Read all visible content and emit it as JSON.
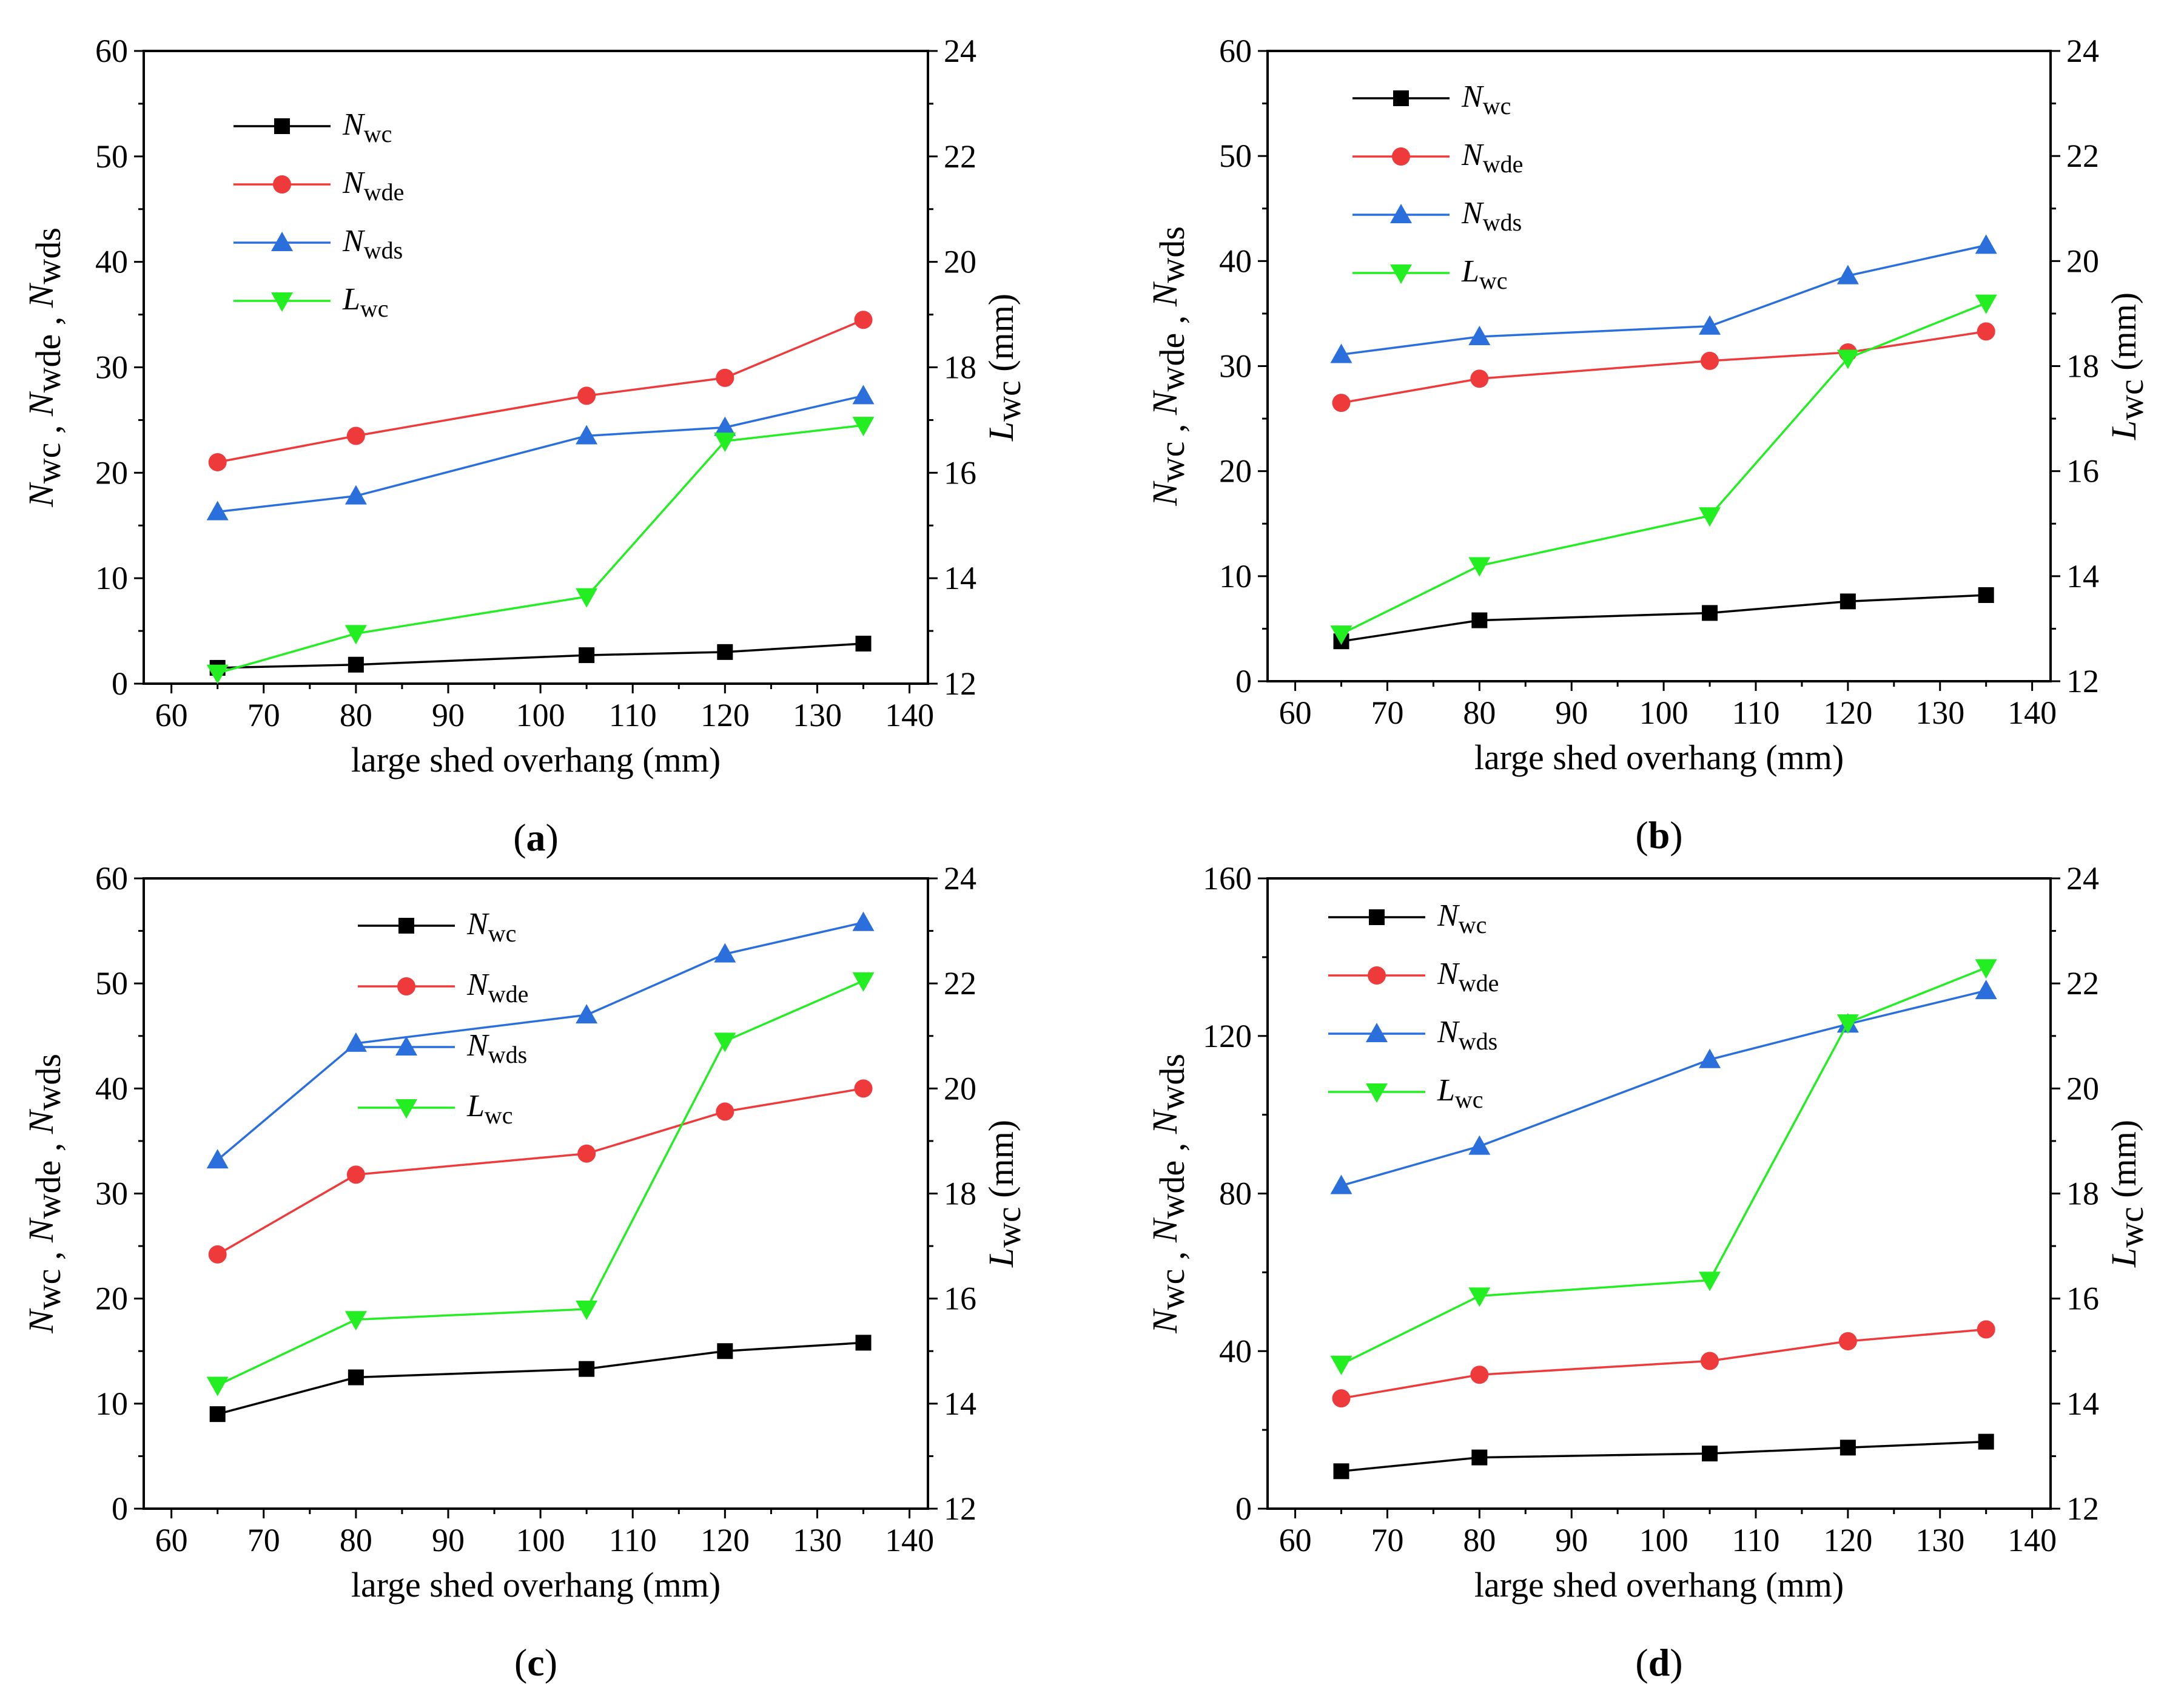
{
  "chart_data": [
    {
      "panel": "a",
      "type": "line",
      "caption": "(a)",
      "xlabel": "large shed overhang (mm)",
      "ylabel_left": "Nwc , Nwde , Nwds",
      "ylabel_right": "Lwc (mm)",
      "x": [
        65,
        80,
        105,
        120,
        135
      ],
      "xlim": [
        57,
        142
      ],
      "xticks": [
        60,
        70,
        80,
        90,
        100,
        110,
        120,
        130,
        140
      ],
      "ylim_left": [
        0,
        60
      ],
      "yticks_left": [
        0,
        10,
        20,
        30,
        40,
        50,
        60
      ],
      "ylim_right": [
        12,
        24
      ],
      "yticks_right": [
        12,
        14,
        16,
        18,
        20,
        22,
        24
      ],
      "legend_position": "top-left",
      "series": [
        {
          "name": "Nwc",
          "base": "N",
          "sub": "wc",
          "axis": "left",
          "marker": "square",
          "color": "#000000",
          "values": [
            1.5,
            1.8,
            2.7,
            3.0,
            3.8
          ]
        },
        {
          "name": "Nwde",
          "base": "N",
          "sub": "wde",
          "axis": "left",
          "marker": "circle",
          "color": "#ee3a3a",
          "values": [
            21.0,
            23.5,
            27.3,
            29.0,
            34.5
          ]
        },
        {
          "name": "Nwds",
          "base": "N",
          "sub": "wds",
          "axis": "left",
          "marker": "triangle",
          "color": "#2a6fdc",
          "values": [
            16.3,
            17.8,
            23.5,
            24.3,
            27.3
          ]
        },
        {
          "name": "Lwc",
          "base": "L",
          "sub": "wc",
          "axis": "right",
          "marker": "triangle-down",
          "color": "#22ee22",
          "values": [
            12.2,
            12.95,
            13.65,
            16.6,
            16.9
          ]
        }
      ]
    },
    {
      "panel": "b",
      "type": "line",
      "caption": "(b)",
      "xlabel": "large shed overhang (mm)",
      "ylabel_left": "Nwc , Nwde , Nwds",
      "ylabel_right": "Lwc (mm)",
      "x": [
        65,
        80,
        105,
        120,
        135
      ],
      "xlim": [
        57,
        142
      ],
      "xticks": [
        60,
        70,
        80,
        90,
        100,
        110,
        120,
        130,
        140
      ],
      "ylim_left": [
        0,
        60
      ],
      "yticks_left": [
        0,
        10,
        20,
        30,
        40,
        50,
        60
      ],
      "ylim_right": [
        12,
        24
      ],
      "yticks_right": [
        12,
        14,
        16,
        18,
        20,
        22,
        24
      ],
      "legend_position": "top-left",
      "series": [
        {
          "name": "Nwc",
          "base": "N",
          "sub": "wc",
          "axis": "left",
          "marker": "square",
          "color": "#000000",
          "values": [
            3.8,
            5.8,
            6.5,
            7.6,
            8.2
          ]
        },
        {
          "name": "Nwde",
          "base": "N",
          "sub": "wde",
          "axis": "left",
          "marker": "circle",
          "color": "#ee3a3a",
          "values": [
            26.5,
            28.8,
            30.5,
            31.3,
            33.3
          ]
        },
        {
          "name": "Nwds",
          "base": "N",
          "sub": "wds",
          "axis": "left",
          "marker": "triangle",
          "color": "#2a6fdc",
          "values": [
            31.1,
            32.8,
            33.8,
            38.6,
            41.5
          ]
        },
        {
          "name": "Lwc",
          "base": "L",
          "sub": "wc",
          "axis": "right",
          "marker": "triangle-down",
          "color": "#22ee22",
          "values": [
            12.9,
            14.2,
            15.15,
            18.15,
            19.2
          ]
        }
      ]
    },
    {
      "panel": "c",
      "type": "line",
      "caption": "(c)",
      "xlabel": "large shed overhang (mm)",
      "ylabel_left": "Nwc , Nwde , Nwds",
      "ylabel_right": "Lwc (mm)",
      "x": [
        65,
        80,
        105,
        120,
        135
      ],
      "xlim": [
        57,
        142
      ],
      "xticks": [
        60,
        70,
        80,
        90,
        100,
        110,
        120,
        130,
        140
      ],
      "ylim_left": [
        0,
        60
      ],
      "yticks_left": [
        0,
        10,
        20,
        30,
        40,
        50,
        60
      ],
      "ylim_right": [
        12,
        24
      ],
      "yticks_right": [
        12,
        14,
        16,
        18,
        20,
        22,
        24
      ],
      "legend_position": "top-center",
      "series": [
        {
          "name": "Nwc",
          "base": "N",
          "sub": "wc",
          "axis": "left",
          "marker": "square",
          "color": "#000000",
          "values": [
            9.0,
            12.5,
            13.3,
            15.0,
            15.8
          ]
        },
        {
          "name": "Nwde",
          "base": "N",
          "sub": "wde",
          "axis": "left",
          "marker": "circle",
          "color": "#ee3a3a",
          "values": [
            24.2,
            31.8,
            33.8,
            37.8,
            40.0
          ]
        },
        {
          "name": "Nwds",
          "base": "N",
          "sub": "wds",
          "axis": "left",
          "marker": "triangle",
          "color": "#2a6fdc",
          "values": [
            33.2,
            44.3,
            47.0,
            52.8,
            55.8
          ]
        },
        {
          "name": "Lwc",
          "base": "L",
          "sub": "wc",
          "axis": "right",
          "marker": "triangle-down",
          "color": "#22ee22",
          "values": [
            14.35,
            15.6,
            15.8,
            20.9,
            22.05
          ]
        }
      ]
    },
    {
      "panel": "d",
      "type": "line",
      "caption": "(d)",
      "xlabel": "large shed overhang (mm)",
      "ylabel_left": "Nwc , Nwde , Nwds",
      "ylabel_right": "Lwc (mm)",
      "x": [
        65,
        80,
        105,
        120,
        135
      ],
      "xlim": [
        57,
        142
      ],
      "xticks": [
        60,
        70,
        80,
        90,
        100,
        110,
        120,
        130,
        140
      ],
      "ylim_left": [
        0,
        160
      ],
      "yticks_left": [
        0,
        40,
        80,
        120,
        160
      ],
      "ylim_right": [
        12,
        24
      ],
      "yticks_right": [
        12,
        14,
        16,
        18,
        20,
        22,
        24
      ],
      "legend_position": "top-left",
      "series": [
        {
          "name": "Nwc",
          "base": "N",
          "sub": "wc",
          "axis": "left",
          "marker": "square",
          "color": "#000000",
          "values": [
            9.5,
            13.0,
            14.0,
            15.5,
            17.0
          ]
        },
        {
          "name": "Nwde",
          "base": "N",
          "sub": "wde",
          "axis": "left",
          "marker": "circle",
          "color": "#ee3a3a",
          "values": [
            28.0,
            34.0,
            37.5,
            42.5,
            45.5
          ]
        },
        {
          "name": "Nwds",
          "base": "N",
          "sub": "wds",
          "axis": "left",
          "marker": "triangle",
          "color": "#2a6fdc",
          "values": [
            82.0,
            92.0,
            114.0,
            123.0,
            131.5
          ]
        },
        {
          "name": "Lwc",
          "base": "L",
          "sub": "wc",
          "axis": "right",
          "marker": "triangle-down",
          "color": "#22ee22",
          "values": [
            14.75,
            16.05,
            16.35,
            21.25,
            22.3
          ]
        }
      ]
    }
  ]
}
